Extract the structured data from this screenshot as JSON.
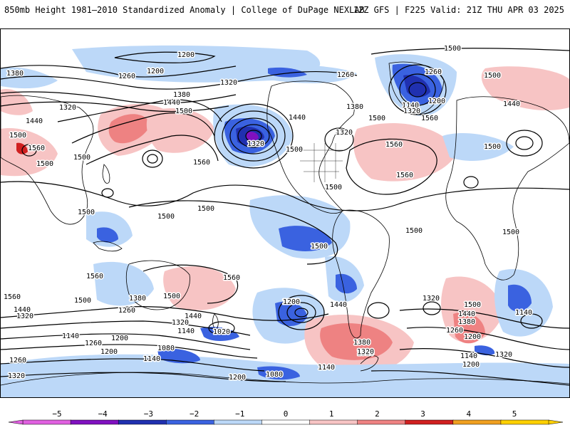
{
  "header": {
    "title_left": "850mb Height 1981–2010 Standardized Anomaly | College of DuPage NEXLAB",
    "title_right": "12Z GFS | F225 Valid: 21Z THU APR 03 2025"
  },
  "map": {
    "background": "#ffffff",
    "coast_color": "#000000",
    "contour_color": "#000000",
    "contour_labels": [
      "1380",
      "1440",
      "1320",
      "1500",
      "1560",
      "1500",
      "1500",
      "1200",
      "1200",
      "1260",
      "1320",
      "1380",
      "1440",
      "1500",
      "1560",
      "1500",
      "1440",
      "1500",
      "1320",
      "1320",
      "1500",
      "1560",
      "1560",
      "1500",
      "1260",
      "1260",
      "1140",
      "1200",
      "1320",
      "1380",
      "1440",
      "1500",
      "1560",
      "1500",
      "1500",
      "1500",
      "1500",
      "1500",
      "1500",
      "1560",
      "1560",
      "1500",
      "1380",
      "1500",
      "1560",
      "1500",
      "1440",
      "1320",
      "1260",
      "1200",
      "1140",
      "1440",
      "1320",
      "1260",
      "1200",
      "1140",
      "1020",
      "1080",
      "1140",
      "1200",
      "1260",
      "1320",
      "1200",
      "1440",
      "1380",
      "1320",
      "1320",
      "1500",
      "1440",
      "1380",
      "1260",
      "1200",
      "1140",
      "1200",
      "1140",
      "1320",
      "1020",
      "1200",
      "1080",
      "1140",
      "1320"
    ],
    "anomaly_scale": {
      "ticks": [
        "−5",
        "−4",
        "−3",
        "−2",
        "−1",
        "0",
        "1",
        "2",
        "3",
        "4",
        "5"
      ],
      "colors": [
        "#e060e0",
        "#8010c0",
        "#2030b0",
        "#3a62e0",
        "#bcd8f8",
        "#ffffff",
        "#f7c4c4",
        "#ee8282",
        "#d02020",
        "#f0a020",
        "#ffd000"
      ]
    }
  }
}
